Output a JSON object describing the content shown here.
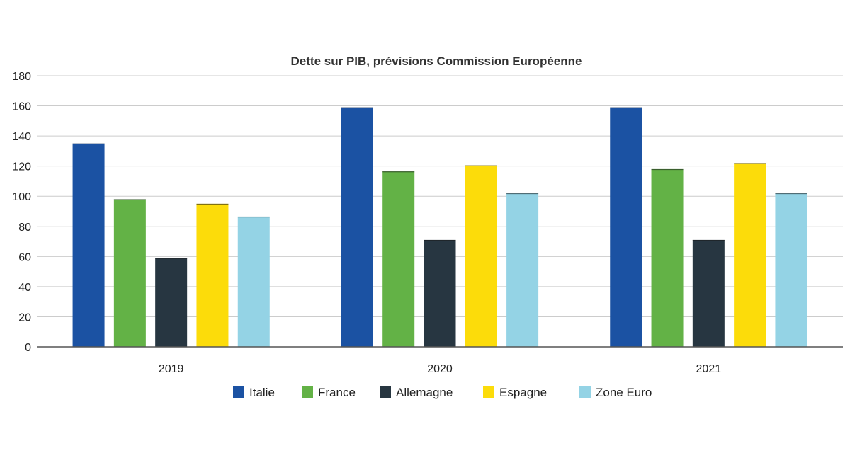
{
  "chart_data": {
    "type": "bar",
    "title": "Dette sur PIB, prévisions Commission Européenne",
    "xlabel": "",
    "ylabel": "",
    "categories": [
      "2019",
      "2020",
      "2021"
    ],
    "ylim": [
      0,
      180
    ],
    "yticks": [
      0,
      20,
      40,
      60,
      80,
      100,
      120,
      140,
      160,
      180
    ],
    "grid": true,
    "legend_position": "bottom",
    "series": [
      {
        "name": "Italie",
        "color": "#1b52a3",
        "values": [
          135,
          159,
          159
        ]
      },
      {
        "name": "France",
        "color": "#63b246",
        "values": [
          98,
          116.5,
          118
        ]
      },
      {
        "name": "Allemagne",
        "color": "#273641",
        "values": [
          59,
          71,
          71
        ]
      },
      {
        "name": "Espagne",
        "color": "#fcdc0a",
        "values": [
          95,
          120.5,
          122
        ]
      },
      {
        "name": "Zone Euro",
        "color": "#94d3e5",
        "values": [
          86.5,
          102,
          102
        ]
      }
    ]
  }
}
